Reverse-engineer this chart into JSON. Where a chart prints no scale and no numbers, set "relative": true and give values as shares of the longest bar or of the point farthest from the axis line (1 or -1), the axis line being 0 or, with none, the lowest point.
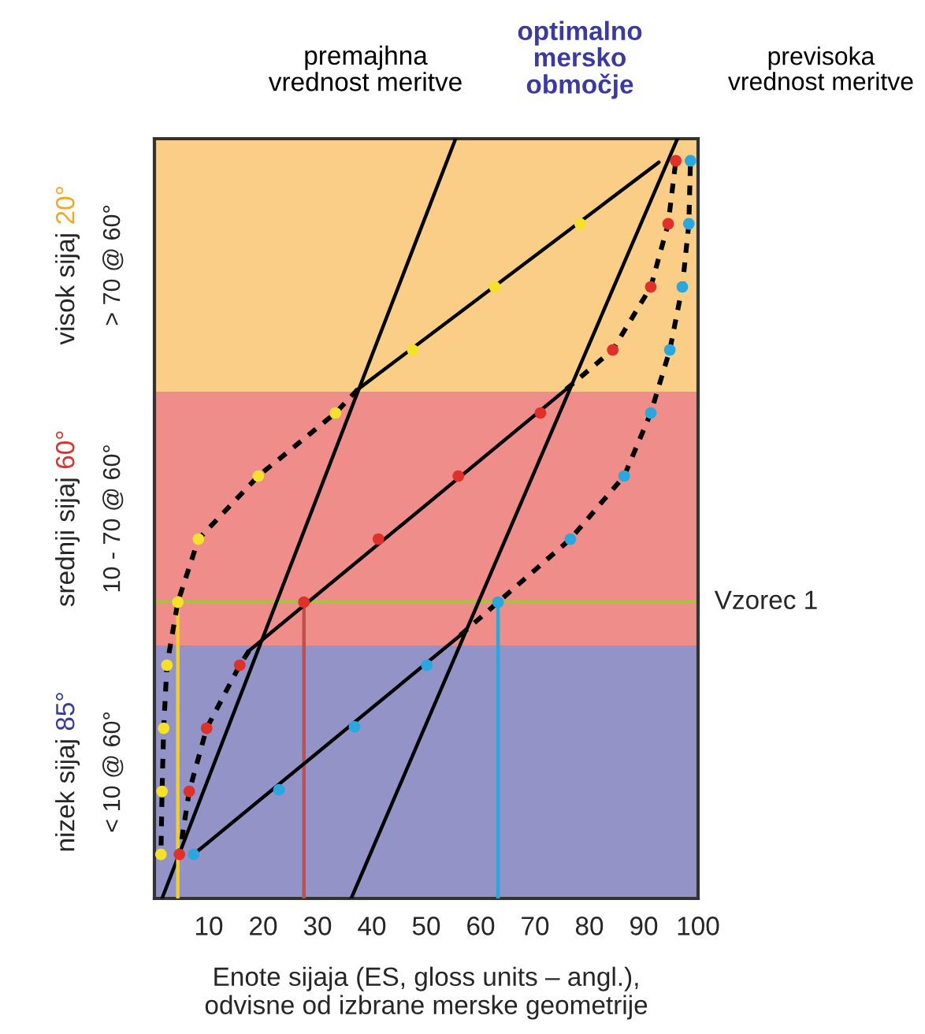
{
  "chart_data": {
    "type": "line",
    "relative": true,
    "legend": false,
    "xlabel": "Enote sijaja (ES, gloss units – angl.),\nodvisne od izbrane merske geometrije",
    "xlim": [
      0,
      100
    ],
    "xticks": [
      10,
      20,
      30,
      40,
      50,
      60,
      70,
      80,
      90,
      100
    ],
    "annotations": [
      "premajhna\nvrednost meritve",
      "optimalno\nmersko\nobmočje",
      "previsoka\nvrednost meritve",
      "visok sijaj 20°",
      "srednji sijaj 60°",
      "nizek sijaj 85°"
    ],
    "bands": [
      {
        "axis": "y",
        "from": 0.667,
        "to": 1,
        "label": "> 70 @ 60°",
        "color": "#f5a623"
      },
      {
        "axis": "y",
        "from": 0.333,
        "to": 0.667,
        "label": "10 - 70 @ 60°",
        "color": "#e0302a"
      },
      {
        "axis": "y",
        "from": 0,
        "to": 0.333,
        "label": "< 10 @ 60°",
        "color": "#3a3a9a"
      }
    ],
    "ref_lines": [
      {
        "axis": "y",
        "value": 0.39,
        "label": "Vzorec 1",
        "color": "#9acd32"
      }
    ],
    "series": [
      {
        "color": "#000000",
        "line_style": "solid",
        "x": [
          1.4,
          55.4
        ],
        "values": [
          0,
          1
        ]
      },
      {
        "color": "#000000",
        "line_style": "solid",
        "x": [
          36.2,
          96.2
        ],
        "values": [
          0,
          1
        ]
      },
      {
        "color": "#f0d020",
        "line_style": "solid",
        "x": [
          4.3,
          4.3
        ],
        "values": [
          0,
          0.39
        ]
      },
      {
        "color": "#c0504d",
        "line_style": "solid",
        "x": [
          27.5,
          27.5
        ],
        "values": [
          0,
          0.39
        ]
      },
      {
        "color": "#29a8e0",
        "line_style": "solid",
        "x": [
          63.2,
          63.2
        ],
        "values": [
          0,
          0.39
        ]
      },
      {
        "color": "#000000",
        "line_style": "solid",
        "x": [
          37.4,
          92.8
        ],
        "values": [
          0.67,
          0.969
        ]
      },
      {
        "color": "#000000",
        "line_style": "dashed",
        "x": [
          37.4,
          33.3,
          19.1,
          8.1,
          4.3,
          2.3,
          1.7,
          1.4,
          1.2
        ],
        "values": [
          0.67,
          0.639,
          0.556,
          0.473,
          0.39,
          0.307,
          0.224,
          0.141,
          0.058
        ]
      },
      {
        "color": "#000000",
        "line_style": "solid",
        "x": [
          17.4,
          75.7
        ],
        "values": [
          0.326,
          0.67
        ]
      },
      {
        "color": "#000000",
        "line_style": "dashed",
        "x": [
          17.4,
          15.7,
          9.6,
          6.4,
          4.6
        ],
        "values": [
          0.326,
          0.307,
          0.224,
          0.141,
          0.058
        ]
      },
      {
        "color": "#000000",
        "line_style": "dashed",
        "x": [
          75.7,
          84.3,
          91.3,
          94.5,
          95.9
        ],
        "values": [
          0.67,
          0.722,
          0.805,
          0.888,
          0.971
        ]
      },
      {
        "color": "#000000",
        "line_style": "solid",
        "x": [
          7.2,
          56.2
        ],
        "values": [
          0.058,
          0.346
        ]
      },
      {
        "color": "#000000",
        "line_style": "dashed",
        "x": [
          56.2,
          63.2,
          76.5,
          86.4,
          91.3,
          94.8,
          97.1,
          98.3,
          98.6
        ],
        "values": [
          0.346,
          0.39,
          0.473,
          0.556,
          0.639,
          0.722,
          0.805,
          0.888,
          0.971
        ]
      },
      {
        "type": "scatter",
        "color": "#f5e02a",
        "marker": "circle",
        "x": [
          78.3,
          62.6,
          47.5,
          33.3,
          19.1,
          8.1,
          4.3,
          2.3,
          1.7,
          1.4,
          1.2
        ],
        "values": [
          0.888,
          0.805,
          0.722,
          0.639,
          0.556,
          0.473,
          0.39,
          0.307,
          0.224,
          0.141,
          0.058
        ]
      },
      {
        "type": "scatter",
        "color": "#e0302a",
        "marker": "circle",
        "x": [
          95.9,
          94.5,
          91.3,
          84.3,
          71.0,
          55.9,
          41.2,
          27.5,
          15.7,
          9.6,
          6.4,
          4.6
        ],
        "values": [
          0.971,
          0.888,
          0.805,
          0.722,
          0.639,
          0.556,
          0.473,
          0.39,
          0.307,
          0.224,
          0.141,
          0.058
        ]
      },
      {
        "type": "scatter",
        "color": "#29a8e0",
        "marker": "circle",
        "x": [
          98.6,
          98.3,
          97.1,
          94.8,
          91.3,
          86.4,
          76.5,
          63.2,
          50.1,
          36.8,
          22.9,
          7.2
        ],
        "values": [
          0.971,
          0.888,
          0.805,
          0.722,
          0.639,
          0.556,
          0.473,
          0.39,
          0.307,
          0.226,
          0.143,
          0.058
        ]
      }
    ]
  }
}
